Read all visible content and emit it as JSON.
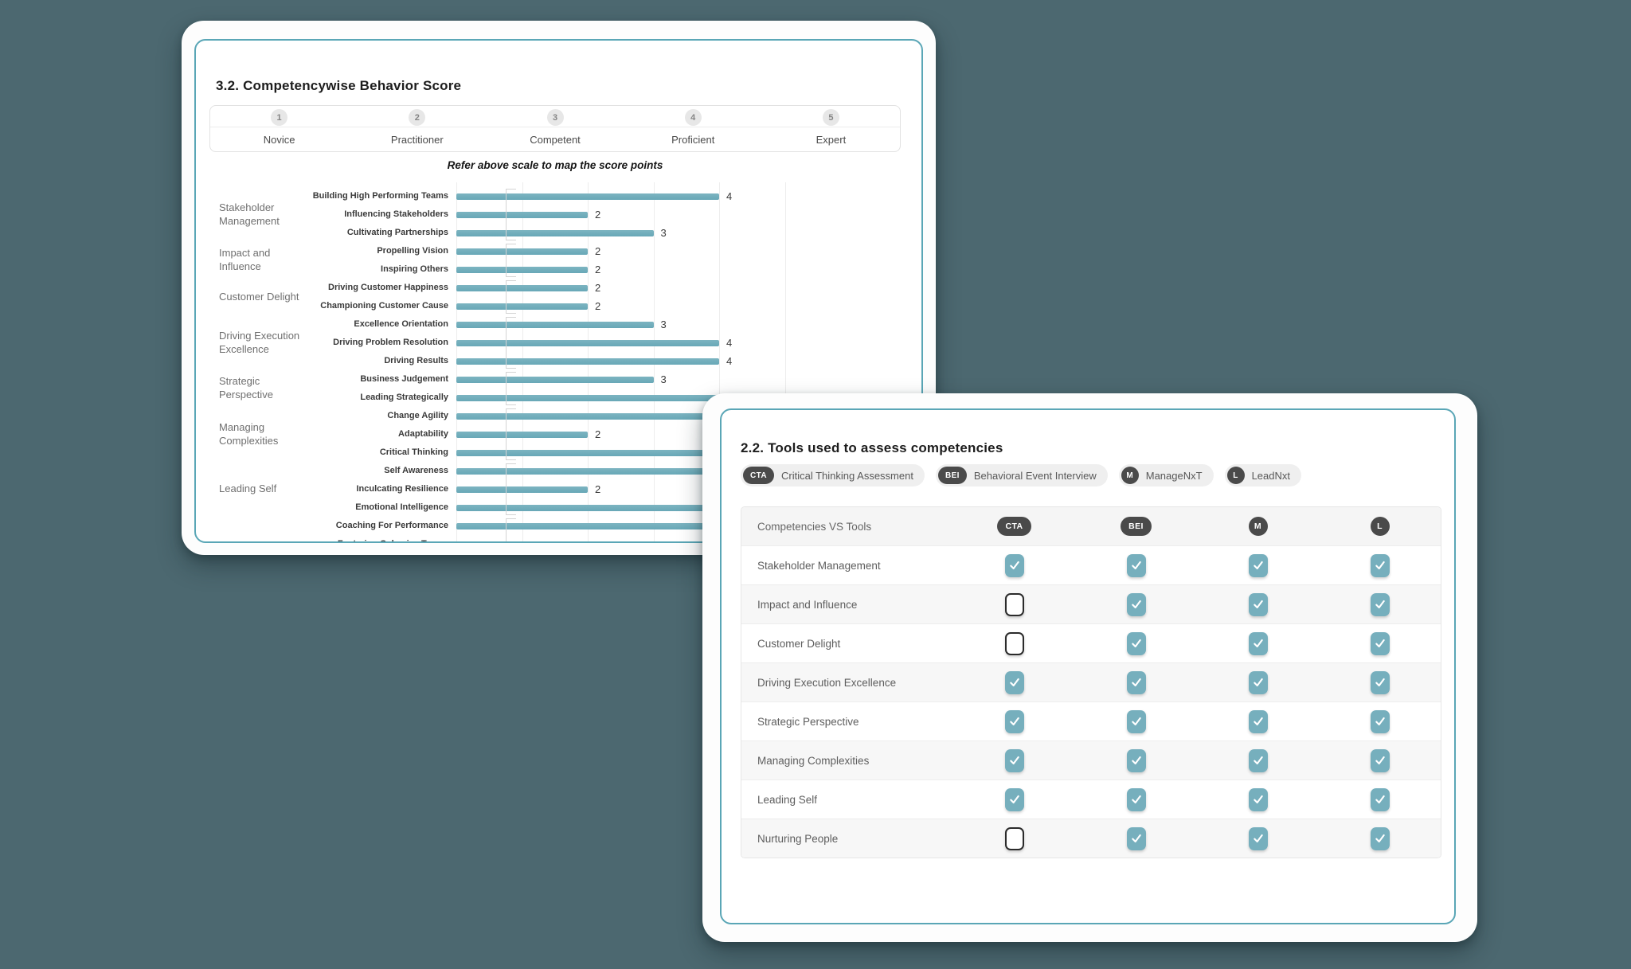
{
  "page": {
    "background": "#4c6870"
  },
  "colors": {
    "card_border_teal": "#5aa6b6",
    "bar_teal": "#6fadbb",
    "checkbox_teal": "#76afbd",
    "badge_dark": "#4a4a4a",
    "chip_bg": "#efefef"
  },
  "behavior_card": {
    "title": "3.2. Competencywise Behavior Score",
    "note": "Refer above scale to map the score points",
    "scale": [
      {
        "number": "1",
        "label": "Novice"
      },
      {
        "number": "2",
        "label": "Practitioner"
      },
      {
        "number": "3",
        "label": "Competent"
      },
      {
        "number": "4",
        "label": "Proficient"
      },
      {
        "number": "5",
        "label": "Expert"
      }
    ]
  },
  "tools_card": {
    "title": "2.2. Tools used to assess competencies",
    "legend": [
      {
        "code": "CTA",
        "label": "Critical Thinking Assessment",
        "shape": "pill"
      },
      {
        "code": "BEI",
        "label": "Behavioral Event Interview",
        "shape": "pill"
      },
      {
        "code": "M",
        "label": "ManageNxT",
        "shape": "circle"
      },
      {
        "code": "L",
        "label": "LeadNxt",
        "shape": "circle"
      }
    ],
    "table_header": "Competencies VS Tools"
  },
  "chart_data": [
    {
      "type": "bar",
      "orientation": "horizontal",
      "title": "3.2. Competencywise Behavior Score",
      "xlabel": "",
      "ylabel": "",
      "xlim": [
        0,
        5
      ],
      "grid": true,
      "scale_labels": [
        "Novice",
        "Practitioner",
        "Competent",
        "Proficient",
        "Expert"
      ],
      "bar_color": "#6fadbb",
      "groups": [
        {
          "category": "Stakeholder Management",
          "items": [
            {
              "label": "Building High Performing Teams",
              "value": 4
            },
            {
              "label": "Influencing Stakeholders",
              "value": 2
            },
            {
              "label": "Cultivating Partnerships",
              "value": 3
            }
          ]
        },
        {
          "category": "Impact and Influence",
          "items": [
            {
              "label": "Propelling Vision",
              "value": 2
            },
            {
              "label": "Inspiring Others",
              "value": 2
            }
          ]
        },
        {
          "category": "Customer Delight",
          "items": [
            {
              "label": "Driving Customer Happiness",
              "value": 2
            },
            {
              "label": "Championing Customer Cause",
              "value": 2
            }
          ]
        },
        {
          "category": "Driving Execution Excellence",
          "items": [
            {
              "label": "Excellence Orientation",
              "value": 3
            },
            {
              "label": "Driving Problem Resolution",
              "value": 4
            },
            {
              "label": "Driving Results",
              "value": 4
            }
          ]
        },
        {
          "category": "Strategic Perspective",
          "items": [
            {
              "label": "Business Judgement",
              "value": 3
            },
            {
              "label": "Leading Strategically",
              "value": 4
            }
          ]
        },
        {
          "category": "Managing Complexities",
          "items": [
            {
              "label": "Change Agility",
              "value": 4
            },
            {
              "label": "Adaptability",
              "value": 2
            },
            {
              "label": "Critical Thinking",
              "value": 4
            }
          ]
        },
        {
          "category": "Leading Self",
          "items": [
            {
              "label": "Self Awareness",
              "value": 4
            },
            {
              "label": "Inculcating Resilience",
              "value": 2
            },
            {
              "label": "Emotional Intelligence",
              "value": 4
            }
          ]
        },
        {
          "category": "",
          "items": [
            {
              "label": "Coaching For Performance",
              "value": 4
            },
            {
              "label": "Fostering Cohesive Teams",
              "value": null
            }
          ]
        }
      ],
      "categories": [
        "Building High Performing Teams",
        "Influencing Stakeholders",
        "Cultivating Partnerships",
        "Propelling Vision",
        "Inspiring Others",
        "Driving Customer Happiness",
        "Championing Customer Cause",
        "Excellence Orientation",
        "Driving Problem Resolution",
        "Driving Results",
        "Business Judgement",
        "Leading Strategically",
        "Change Agility",
        "Adaptability",
        "Critical Thinking",
        "Self Awareness",
        "Inculcating Resilience",
        "Emotional Intelligence",
        "Coaching For Performance",
        "Fostering Cohesive Teams"
      ],
      "values": [
        4,
        2,
        3,
        2,
        2,
        2,
        2,
        3,
        4,
        4,
        3,
        4,
        4,
        2,
        4,
        4,
        2,
        4,
        4,
        null
      ]
    },
    {
      "type": "table",
      "title": "2.2. Tools used to assess competencies",
      "columns": [
        "CTA",
        "BEI",
        "M",
        "L"
      ],
      "rows": [
        {
          "name": "Stakeholder Management",
          "checks": [
            true,
            true,
            true,
            true
          ]
        },
        {
          "name": "Impact and Influence",
          "checks": [
            false,
            true,
            true,
            true
          ]
        },
        {
          "name": "Customer Delight",
          "checks": [
            false,
            true,
            true,
            true
          ]
        },
        {
          "name": "Driving Execution Excellence",
          "checks": [
            true,
            true,
            true,
            true
          ]
        },
        {
          "name": "Strategic Perspective",
          "checks": [
            true,
            true,
            true,
            true
          ]
        },
        {
          "name": "Managing Complexities",
          "checks": [
            true,
            true,
            true,
            true
          ]
        },
        {
          "name": "Leading Self",
          "checks": [
            true,
            true,
            true,
            true
          ]
        },
        {
          "name": "Nurturing People",
          "checks": [
            false,
            true,
            true,
            true
          ]
        }
      ]
    }
  ]
}
